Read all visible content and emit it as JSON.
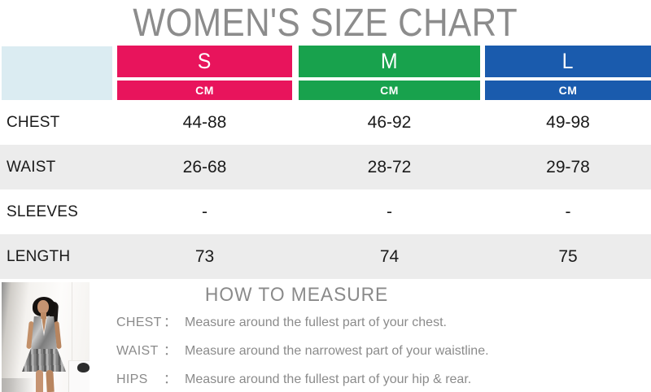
{
  "title": "WOMEN'S SIZE CHART",
  "chart_data": {
    "type": "table",
    "title": "WOMEN'S SIZE CHART",
    "size_columns": [
      "S",
      "M",
      "L"
    ],
    "unit_row": [
      "CM",
      "CM",
      "CM"
    ],
    "rows": [
      {
        "label": "CHEST",
        "values": [
          "44-88",
          "46-92",
          "49-98"
        ]
      },
      {
        "label": "WAIST",
        "values": [
          "26-68",
          "28-72",
          "29-78"
        ]
      },
      {
        "label": "SLEEVES",
        "values": [
          "-",
          "-",
          "-"
        ]
      },
      {
        "label": "LENGTH",
        "values": [
          "73",
          "74",
          "75"
        ]
      }
    ]
  },
  "colors": {
    "size_s": "#E8145C",
    "size_m": "#18A24D",
    "size_l": "#1A5BAD",
    "corner_cell": "#DBECF2",
    "row_alt": "#ECECEC",
    "title_gray": "#8C8C8C",
    "text_gray": "#8B8B8B"
  },
  "how_to_measure": {
    "heading": "HOW TO MEASURE",
    "items": [
      {
        "label": "CHEST",
        "colon": "：",
        "text": "Measure around the fullest part of your chest."
      },
      {
        "label": "WAIST",
        "colon": "：",
        "text": "Measure around the narrowest part of your waistline."
      },
      {
        "label": "HIPS",
        "colon": "：",
        "text": "Measure around the fullest part of your hip & rear."
      }
    ]
  },
  "photo": {
    "description": "Model wearing a silver metallic halter mini dress standing in a white room"
  }
}
